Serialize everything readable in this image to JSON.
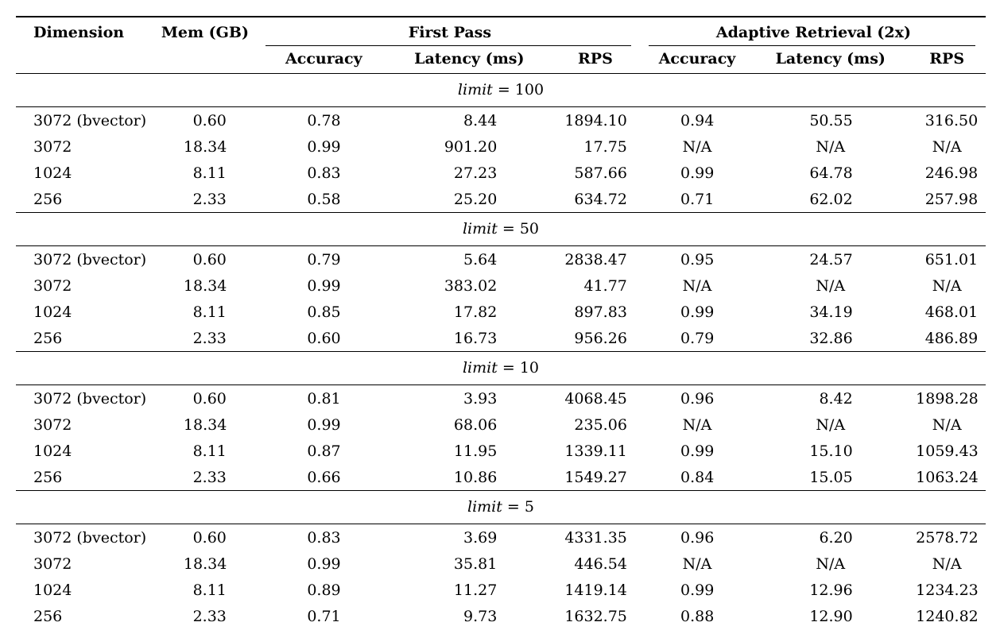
{
  "table": {
    "header": {
      "dimension": "Dimension",
      "mem": "Mem (GB)",
      "first_pass": "First Pass",
      "adaptive": "Adaptive Retrieval (2x)"
    },
    "sub_headers": [
      "Accuracy",
      "Latency (ms)",
      "RPS",
      "Accuracy",
      "Latency (ms)",
      "RPS"
    ],
    "columns": [
      "Dimension",
      "Mem (GB)",
      "First Pass Accuracy",
      "First Pass Latency (ms)",
      "First Pass RPS",
      "Adaptive Accuracy",
      "Adaptive Latency (ms)",
      "Adaptive RPS"
    ],
    "na_text": "N/A",
    "sections": [
      {
        "label_var": "limit",
        "label_rest": "= 100",
        "rows": [
          [
            "3072 (bvector)",
            "0.60",
            "0.78",
            "8.44",
            "1894.10",
            "0.94",
            "50.55",
            "316.50"
          ],
          [
            "3072",
            "18.34",
            "0.99",
            "901.20",
            "17.75",
            "N/A",
            "N/A",
            "N/A"
          ],
          [
            "1024",
            "8.11",
            "0.83",
            "27.23",
            "587.66",
            "0.99",
            "64.78",
            "246.98"
          ],
          [
            "256",
            "2.33",
            "0.58",
            "25.20",
            "634.72",
            "0.71",
            "62.02",
            "257.98"
          ]
        ]
      },
      {
        "label_var": "limit",
        "label_rest": "= 50",
        "rows": [
          [
            "3072 (bvector)",
            "0.60",
            "0.79",
            "5.64",
            "2838.47",
            "0.95",
            "24.57",
            "651.01"
          ],
          [
            "3072",
            "18.34",
            "0.99",
            "383.02",
            "41.77",
            "N/A",
            "N/A",
            "N/A"
          ],
          [
            "1024",
            "8.11",
            "0.85",
            "17.82",
            "897.83",
            "0.99",
            "34.19",
            "468.01"
          ],
          [
            "256",
            "2.33",
            "0.60",
            "16.73",
            "956.26",
            "0.79",
            "32.86",
            "486.89"
          ]
        ]
      },
      {
        "label_var": "limit",
        "label_rest": "= 10",
        "rows": [
          [
            "3072 (bvector)",
            "0.60",
            "0.81",
            "3.93",
            "4068.45",
            "0.96",
            "8.42",
            "1898.28"
          ],
          [
            "3072",
            "18.34",
            "0.99",
            "68.06",
            "235.06",
            "N/A",
            "N/A",
            "N/A"
          ],
          [
            "1024",
            "8.11",
            "0.87",
            "11.95",
            "1339.11",
            "0.99",
            "15.10",
            "1059.43"
          ],
          [
            "256",
            "2.33",
            "0.66",
            "10.86",
            "1549.27",
            "0.84",
            "15.05",
            "1063.24"
          ]
        ]
      },
      {
        "label_var": "limit",
        "label_rest": "= 5",
        "rows": [
          [
            "3072 (bvector)",
            "0.60",
            "0.83",
            "3.69",
            "4331.35",
            "0.96",
            "6.20",
            "2578.72"
          ],
          [
            "3072",
            "18.34",
            "0.99",
            "35.81",
            "446.54",
            "N/A",
            "N/A",
            "N/A"
          ],
          [
            "1024",
            "8.11",
            "0.89",
            "11.27",
            "1419.14",
            "0.99",
            "12.96",
            "1234.23"
          ],
          [
            "256",
            "2.33",
            "0.71",
            "9.73",
            "1632.75",
            "0.88",
            "12.90",
            "1240.82"
          ]
        ]
      }
    ]
  }
}
